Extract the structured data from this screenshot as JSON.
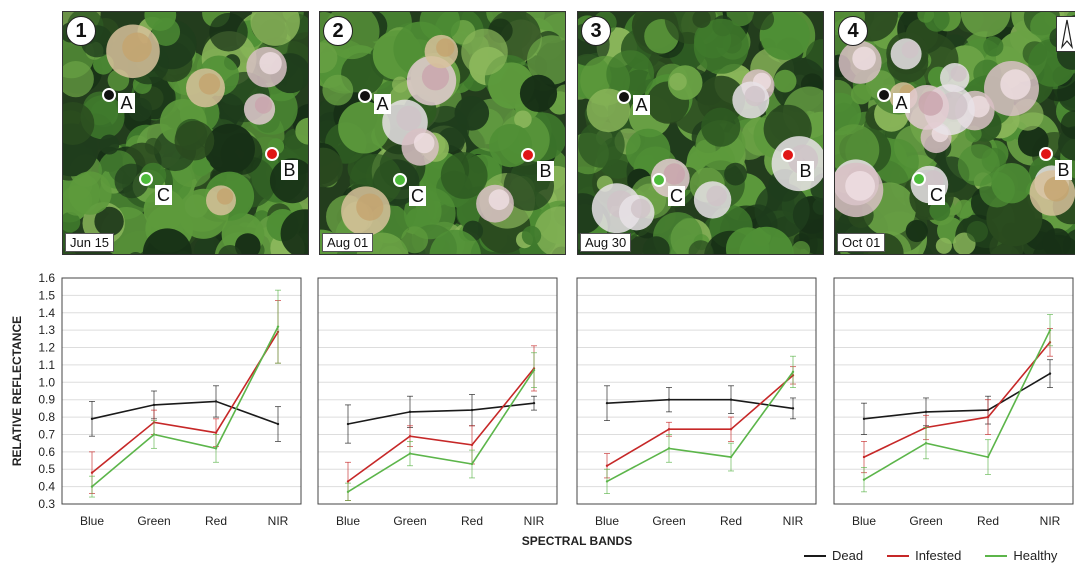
{
  "photos": [
    {
      "number": "1",
      "date": "Jun 15"
    },
    {
      "number": "2",
      "date": "Aug 01"
    },
    {
      "number": "3",
      "date": "Aug 30"
    },
    {
      "number": "4",
      "date": "Oct 01"
    }
  ],
  "tree_labels": [
    "A",
    "B",
    "C"
  ],
  "colors": {
    "dead": "#1a1a1a",
    "infested": "#c62828",
    "healthy": "#5cb54a"
  },
  "chart_data": {
    "type": "line",
    "categories": [
      "Blue",
      "Green",
      "Red",
      "NIR"
    ],
    "ylabel": "RELATIVE  REFLECTANCE",
    "xlabel": "SPECTRAL BANDS",
    "ylim": [
      0.3,
      1.6
    ],
    "yticks": [
      "1.6",
      "1.5",
      "1.4",
      "1.3",
      "1.2",
      "1.1",
      "1.0",
      "0.9",
      "0.8",
      "0.7",
      "0.6",
      "0.5",
      "0.4",
      "0.3"
    ],
    "grid": true,
    "legend_position": "bottom-right",
    "legend": [
      "Dead",
      "Infested",
      "Healthy"
    ],
    "panels": [
      {
        "date": "Jun 15",
        "series": [
          {
            "name": "Dead",
            "values": [
              0.79,
              0.87,
              0.89,
              0.76
            ],
            "err": [
              0.1,
              0.08,
              0.09,
              0.1
            ]
          },
          {
            "name": "Infested",
            "values": [
              0.48,
              0.77,
              0.71,
              1.29
            ],
            "err": [
              0.12,
              0.07,
              0.08,
              0.18
            ]
          },
          {
            "name": "Healthy",
            "values": [
              0.4,
              0.7,
              0.62,
              1.32
            ],
            "err": [
              0.06,
              0.08,
              0.08,
              0.21
            ]
          }
        ]
      },
      {
        "date": "Aug 01",
        "series": [
          {
            "name": "Dead",
            "values": [
              0.76,
              0.83,
              0.84,
              0.88
            ],
            "err": [
              0.11,
              0.09,
              0.09,
              0.04
            ]
          },
          {
            "name": "Infested",
            "values": [
              0.43,
              0.69,
              0.64,
              1.08
            ],
            "err": [
              0.11,
              0.06,
              0.11,
              0.13
            ]
          },
          {
            "name": "Healthy",
            "values": [
              0.37,
              0.59,
              0.53,
              1.07
            ],
            "err": [
              0.05,
              0.07,
              0.08,
              0.1
            ]
          }
        ]
      },
      {
        "date": "Aug 30",
        "series": [
          {
            "name": "Dead",
            "values": [
              0.88,
              0.9,
              0.9,
              0.85
            ],
            "err": [
              0.1,
              0.07,
              0.08,
              0.06
            ]
          },
          {
            "name": "Infested",
            "values": [
              0.52,
              0.73,
              0.73,
              1.04
            ],
            "err": [
              0.07,
              0.04,
              0.07,
              0.05
            ]
          },
          {
            "name": "Healthy",
            "values": [
              0.43,
              0.62,
              0.57,
              1.06
            ],
            "err": [
              0.07,
              0.08,
              0.08,
              0.09
            ]
          }
        ]
      },
      {
        "date": "Oct 01",
        "series": [
          {
            "name": "Dead",
            "values": [
              0.79,
              0.83,
              0.84,
              1.05
            ],
            "err": [
              0.09,
              0.08,
              0.08,
              0.08
            ]
          },
          {
            "name": "Infested",
            "values": [
              0.57,
              0.74,
              0.8,
              1.23
            ],
            "err": [
              0.09,
              0.07,
              0.1,
              0.08
            ]
          },
          {
            "name": "Healthy",
            "values": [
              0.44,
              0.65,
              0.57,
              1.3
            ],
            "err": [
              0.07,
              0.09,
              0.1,
              0.09
            ]
          }
        ]
      }
    ]
  }
}
